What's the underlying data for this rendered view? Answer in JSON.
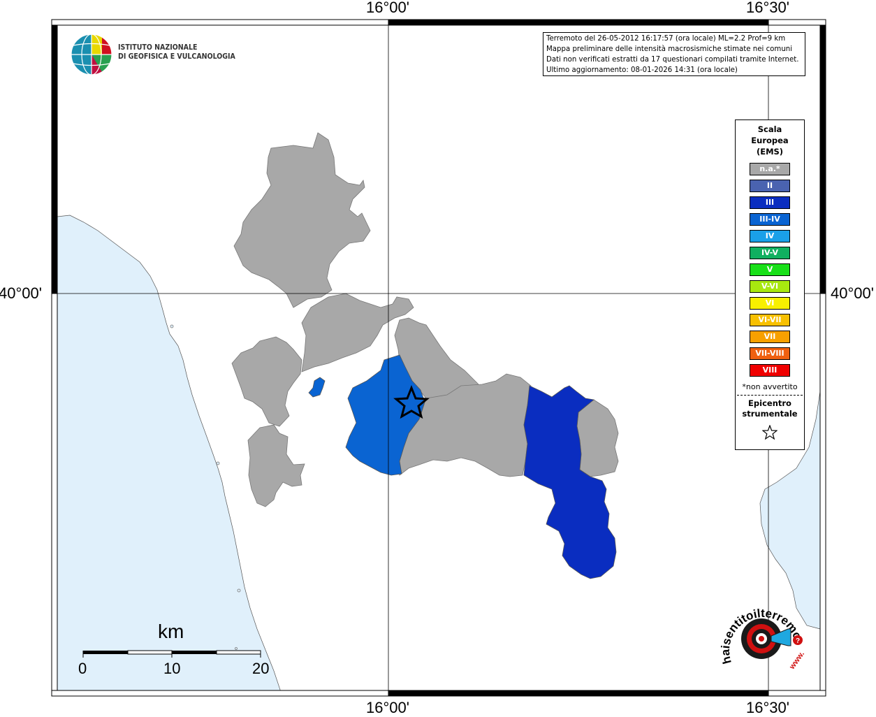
{
  "map": {
    "lon_labels": [
      "16°00'",
      "16°30'"
    ],
    "lat_labels": [
      "40°00'"
    ],
    "colors": {
      "sea": "#e0f0fb",
      "land": "#ffffff",
      "not_available": "#a8a8a8",
      "intensity_III": "#0a2dc0",
      "intensity_III_IV": "#0a64d2"
    }
  },
  "info_box": {
    "line1": "Terremoto del 26-05-2012 16:17:57 (ora locale) ML=2.2 Prof=9 km",
    "line2": "Mappa preliminare delle intensità macrosismiche stimate nei comuni",
    "line3": "Dati non verificati estratti da 17 questionari compilati tramite Internet.",
    "line4": "Ultimo aggiornamento: 08-01-2026 14:31 (ora locale)"
  },
  "logo": {
    "line1": "ISTITUTO NAZIONALE",
    "line2": "DI GEOFISICA E VULCANOLOGIA"
  },
  "legend": {
    "title_line1": "Scala",
    "title_line2": "Europea",
    "title_line3": "(EMS)",
    "items": [
      {
        "label": "n.a.*",
        "color": "#a8a8a8"
      },
      {
        "label": "II",
        "color": "#4a63b0"
      },
      {
        "label": "III",
        "color": "#0a2dc0"
      },
      {
        "label": "III-IV",
        "color": "#0a64d2"
      },
      {
        "label": "IV",
        "color": "#1aa0e8"
      },
      {
        "label": "IV-V",
        "color": "#10b060"
      },
      {
        "label": "V",
        "color": "#18e018"
      },
      {
        "label": "V-VI",
        "color": "#a8e810"
      },
      {
        "label": "VI",
        "color": "#f8f000"
      },
      {
        "label": "VI-VII",
        "color": "#f8c000"
      },
      {
        "label": "VII",
        "color": "#f8a000"
      },
      {
        "label": "VII-VIII",
        "color": "#f06010"
      },
      {
        "label": "VIII",
        "color": "#f00000"
      }
    ],
    "note": "*non avvertito",
    "epicentre_line1": "Epicentro",
    "epicentre_line2": "strumentale"
  },
  "scale_bar": {
    "title": "km",
    "ticks": [
      "0",
      "10",
      "20"
    ]
  },
  "hsi_logo": {
    "text": "haisentitoilterremoto.it",
    "prefix": "www."
  }
}
